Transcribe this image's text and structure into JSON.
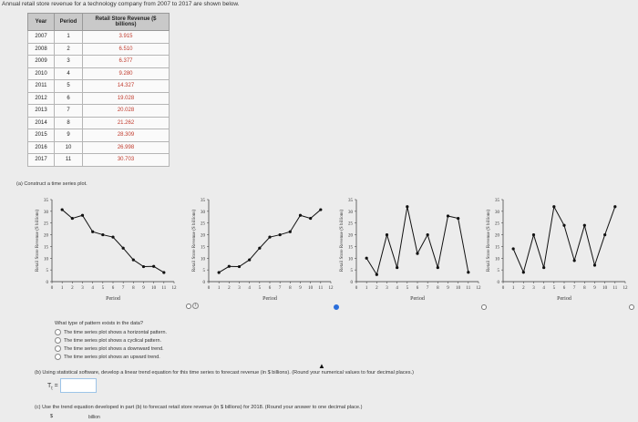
{
  "intro": "Annual retail store revenue for a technology company from 2007 to 2017 are shown below.",
  "table": {
    "headers": {
      "year": "Year",
      "period": "Period",
      "revenue": "Retail Store Revenue ($ billions)"
    },
    "rows": [
      {
        "year": "2007",
        "period": "1",
        "revenue": "3.915"
      },
      {
        "year": "2008",
        "period": "2",
        "revenue": "6.510"
      },
      {
        "year": "2009",
        "period": "3",
        "revenue": "6.377"
      },
      {
        "year": "2010",
        "period": "4",
        "revenue": "9.280"
      },
      {
        "year": "2011",
        "period": "5",
        "revenue": "14.327"
      },
      {
        "year": "2012",
        "period": "6",
        "revenue": "19.028"
      },
      {
        "year": "2013",
        "period": "7",
        "revenue": "20.028"
      },
      {
        "year": "2014",
        "period": "8",
        "revenue": "21.262"
      },
      {
        "year": "2015",
        "period": "9",
        "revenue": "28.309"
      },
      {
        "year": "2016",
        "period": "10",
        "revenue": "26.998"
      },
      {
        "year": "2017",
        "period": "11",
        "revenue": "30.703"
      }
    ]
  },
  "part_a": "(a) Construct a time series plot.",
  "chart_data": [
    {
      "type": "line",
      "xlabel": "Period",
      "ylabel": "Retail Store Revenue ($ billions)",
      "xlim": [
        0,
        12
      ],
      "ylim": [
        0,
        35
      ],
      "x": [
        1,
        2,
        3,
        4,
        5,
        6,
        7,
        8,
        9,
        10,
        11
      ],
      "y": [
        30.7,
        27.0,
        28.3,
        21.3,
        20.0,
        19.0,
        14.3,
        9.3,
        6.4,
        6.5,
        3.9
      ]
    },
    {
      "type": "line",
      "xlabel": "Period",
      "ylabel": "Retail Store Revenue ($ billions)",
      "xlim": [
        0,
        12
      ],
      "ylim": [
        0,
        35
      ],
      "x": [
        1,
        2,
        3,
        4,
        5,
        6,
        7,
        8,
        9,
        10,
        11
      ],
      "y": [
        3.9,
        6.5,
        6.4,
        9.3,
        14.3,
        19.0,
        20.0,
        21.3,
        28.3,
        27.0,
        30.7
      ]
    },
    {
      "type": "line",
      "xlabel": "Period",
      "ylabel": "Retail Store Revenue ($ billions)",
      "xlim": [
        0,
        12
      ],
      "ylim": [
        0,
        35
      ],
      "x": [
        1,
        2,
        3,
        4,
        5,
        6,
        7,
        8,
        9,
        10,
        11
      ],
      "y": [
        10.0,
        3.0,
        20.0,
        6.0,
        32.0,
        12.0,
        20.0,
        6.0,
        28.0,
        27.0,
        4.0
      ]
    },
    {
      "type": "line",
      "xlabel": "Period",
      "ylabel": "Retail Store Revenue ($ billions)",
      "xlim": [
        0,
        12
      ],
      "ylim": [
        0,
        35
      ],
      "x": [
        1,
        2,
        3,
        4,
        5,
        6,
        7,
        8,
        9,
        10,
        11
      ],
      "y": [
        14.0,
        4.0,
        20.0,
        6.0,
        32.0,
        24.0,
        9.0,
        24.0,
        7.0,
        20.0,
        32.0
      ]
    }
  ],
  "xticks": [
    "0",
    "1",
    "2",
    "3",
    "4",
    "5",
    "6",
    "7",
    "8",
    "9",
    "10",
    "11",
    "12"
  ],
  "yticks": [
    "0",
    "5",
    "10",
    "15",
    "20",
    "25",
    "30",
    "35"
  ],
  "question": "What type of pattern exists in the data?",
  "options": [
    "The time series plot shows a horizontal pattern.",
    "The time series plot shows a cyclical pattern.",
    "The time series plot shows a downward trend.",
    "The time series plot shows an upward trend."
  ],
  "part_b": "(b) Using statistical software, develop a linear trend equation for this time series to forecast revenue (in $ billions). (Round your numerical values to four decimal places.)",
  "tt_label": "T",
  "tt_sub": "t",
  "tt_eq": " =",
  "part_c": "(c) Use the trend equation developed in part (b) to forecast retail store revenue (in $ billions) for 2018. (Round your answer to one decimal place.)",
  "dollar": "$",
  "unit": "billion",
  "info_icon": "i"
}
